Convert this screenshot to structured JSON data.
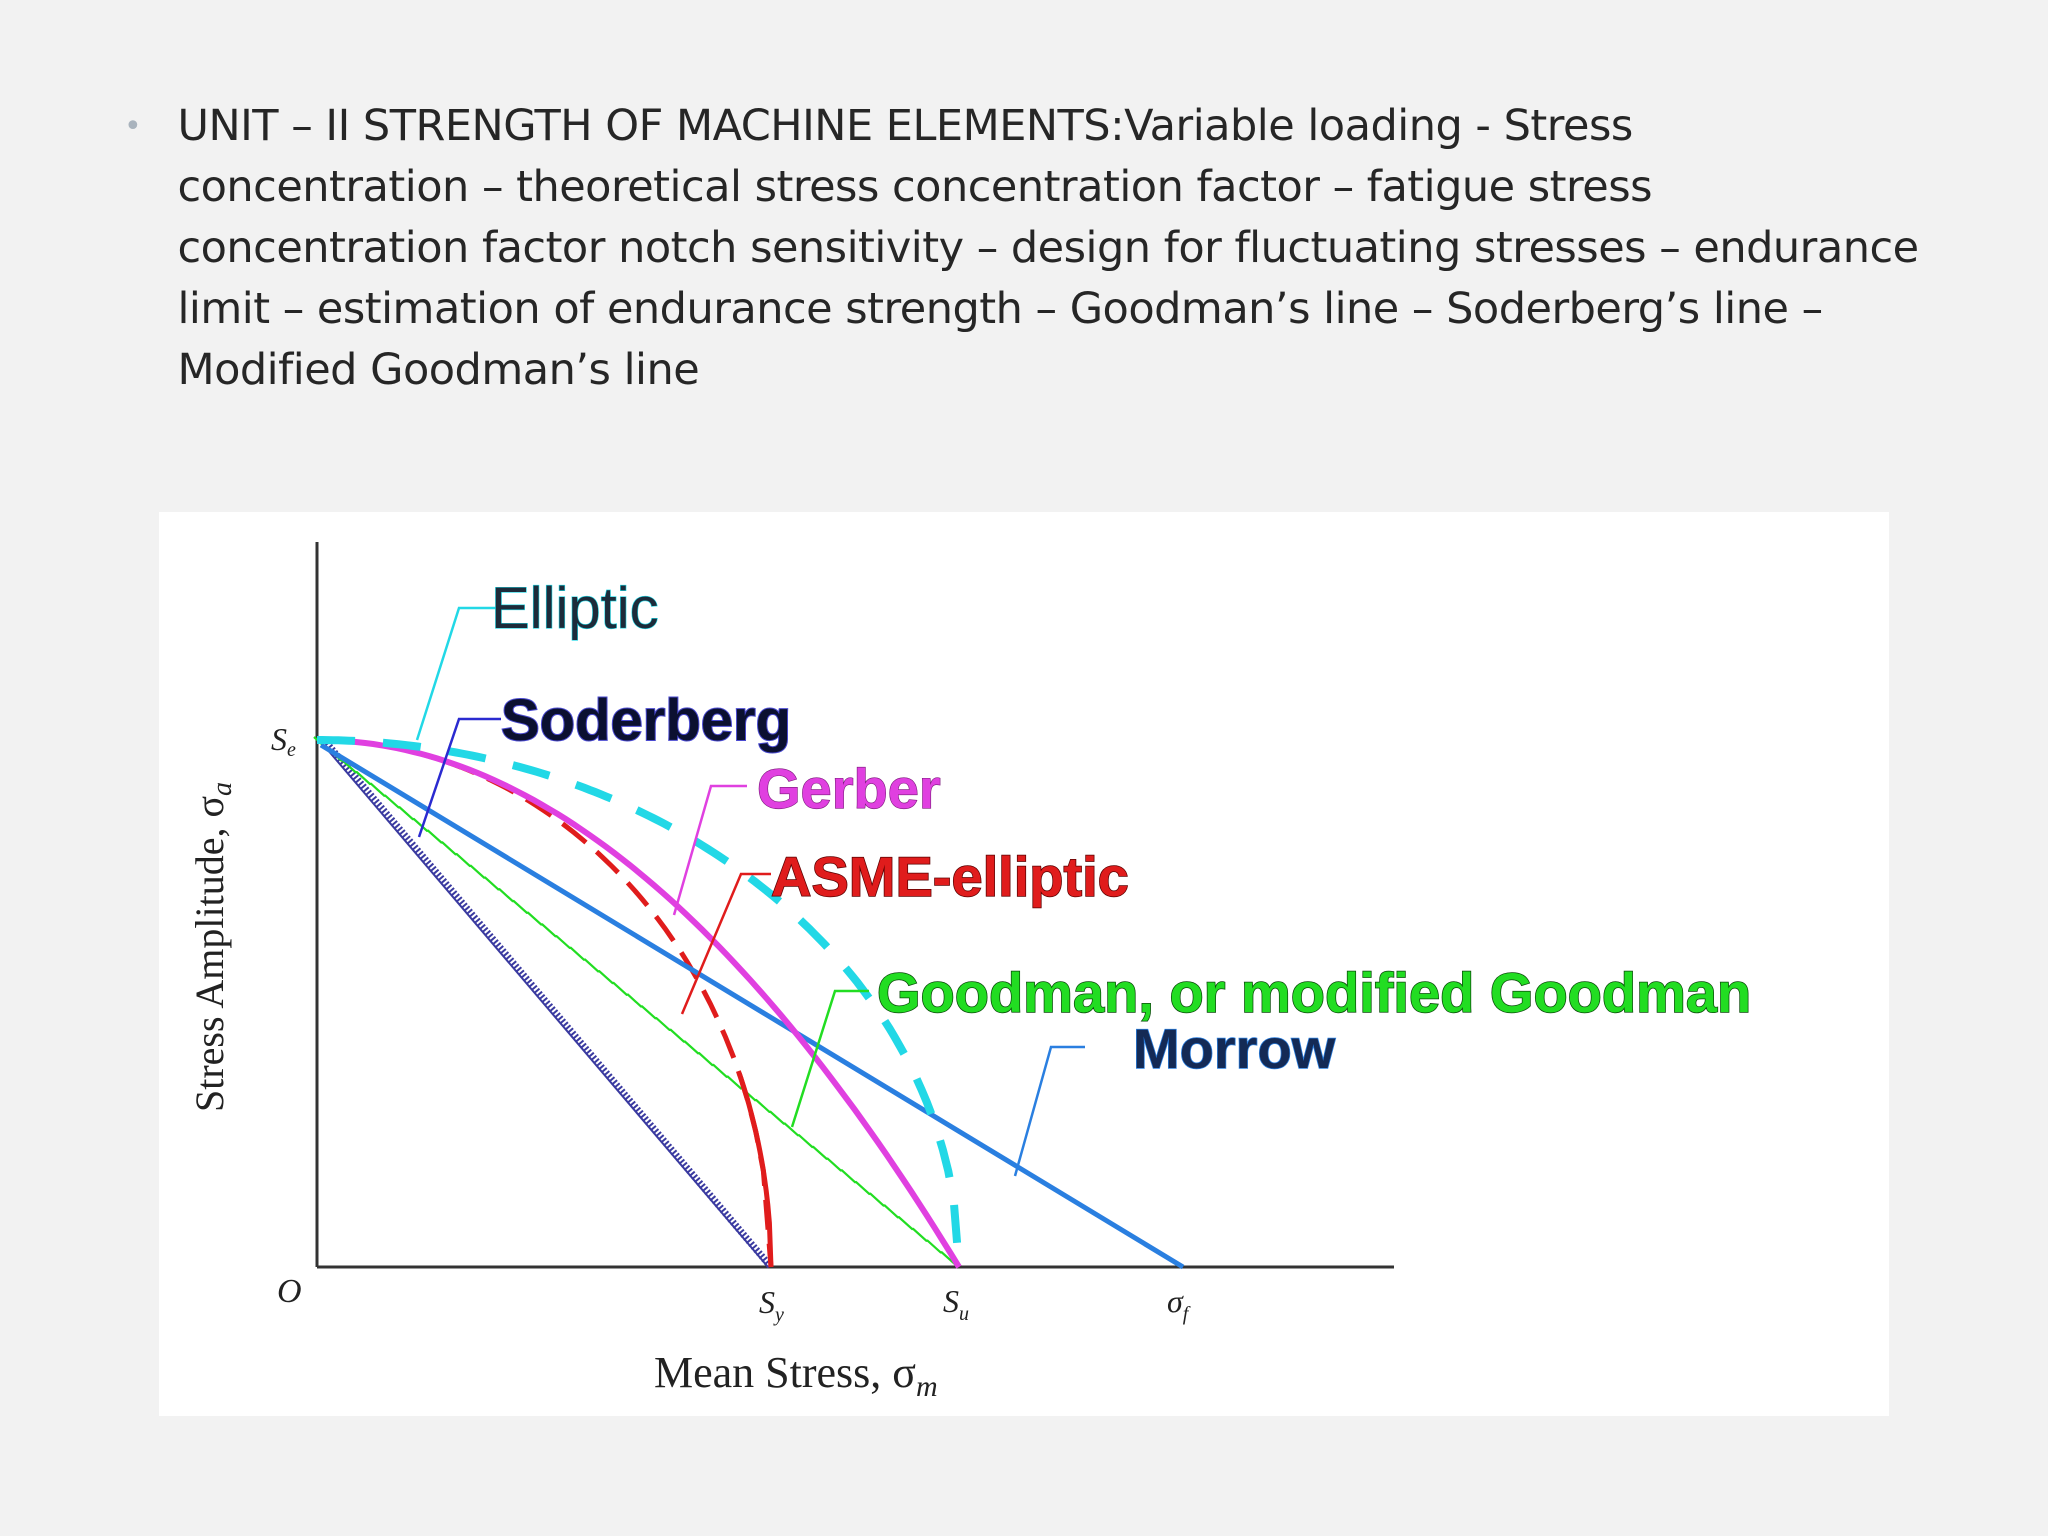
{
  "slide": {
    "bullet": "•",
    "text": "UNIT – II STRENGTH OF MACHINE ELEMENTS:Variable loading - Stress\nconcentration – theoretical stress concentration factor – fatigue stress\nconcentration factor notch sensitivity – design for fluctuating stresses – endurance\nlimit – estimation of endurance strength – Goodman’s line – Soderberg’s line –\nModified Goodman’s line"
  },
  "diagram": {
    "y_axis_label": "Stress Amplitude, σ",
    "y_axis_sub": "a",
    "x_axis_label": "Mean Stress, σ",
    "x_axis_sub": "m",
    "origin_label": "O",
    "se_label": "S",
    "se_sub": "e",
    "sy_label": "S",
    "sy_sub": "y",
    "su_label": "S",
    "su_sub": "u",
    "sf_label": "σ",
    "sf_sub": "f",
    "curves": {
      "elliptic": {
        "label": "Elliptic",
        "color": "#22d8e6"
      },
      "soderberg": {
        "label": "Soderberg",
        "color": "#3a3aa0",
        "label_color": "#0b1030"
      },
      "gerber": {
        "label": "Gerber",
        "color": "#e040e0"
      },
      "asme": {
        "label": "ASME-elliptic",
        "color": "#e01c1c"
      },
      "goodman": {
        "label": "Goodman, or modified Goodman",
        "color": "#22dd22"
      },
      "morrow": {
        "label": "Morrow",
        "color": "#2a7fe0",
        "label_color": "#142a55"
      }
    }
  }
}
